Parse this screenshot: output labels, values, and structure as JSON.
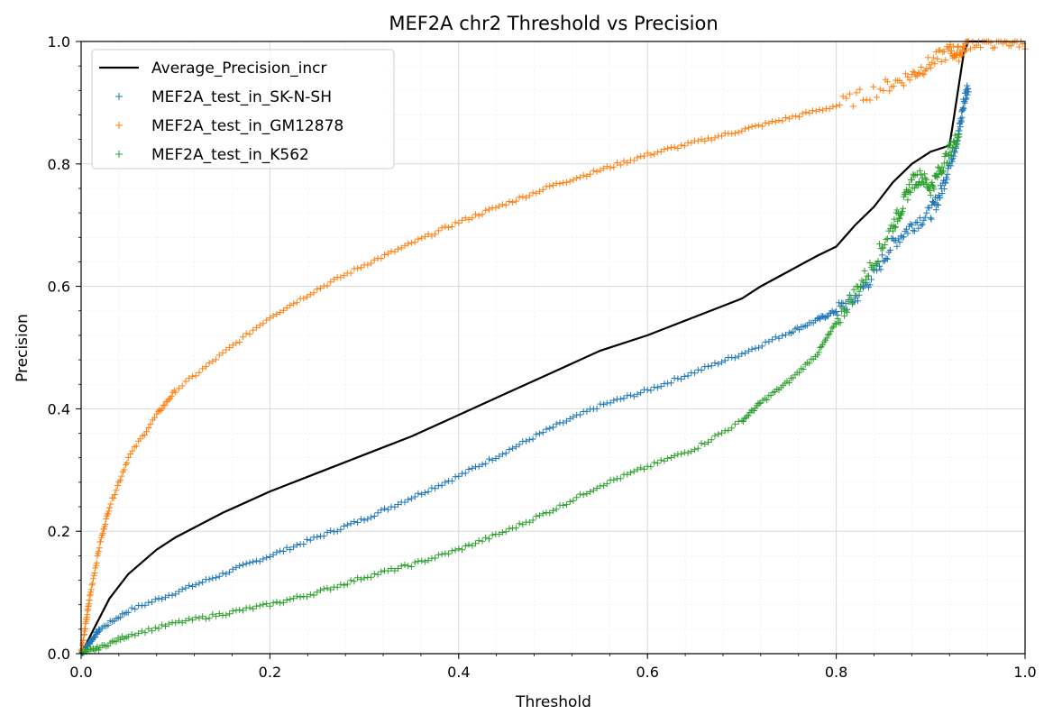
{
  "chart_data": {
    "type": "line",
    "title": "MEF2A chr2 Threshold vs Precision",
    "xlabel": "Threshold",
    "ylabel": "Precision",
    "xlim": [
      0.0,
      1.0
    ],
    "ylim": [
      0.0,
      1.0
    ],
    "xticks": [
      "0.0",
      "0.2",
      "0.4",
      "0.6",
      "0.8",
      "1.0"
    ],
    "yticks": [
      "0.0",
      "0.2",
      "0.4",
      "0.6",
      "0.8",
      "1.0"
    ],
    "grid": true,
    "minor_grid": true,
    "legend_position": "top-left",
    "series": [
      {
        "name": "Average_Precision_incr",
        "style": "line",
        "color": "#000000",
        "points": [
          [
            0,
            0
          ],
          [
            0.01,
            0.03
          ],
          [
            0.02,
            0.06
          ],
          [
            0.03,
            0.09
          ],
          [
            0.05,
            0.13
          ],
          [
            0.08,
            0.17
          ],
          [
            0.1,
            0.19
          ],
          [
            0.15,
            0.23
          ],
          [
            0.2,
            0.265
          ],
          [
            0.25,
            0.295
          ],
          [
            0.3,
            0.325
          ],
          [
            0.35,
            0.355
          ],
          [
            0.4,
            0.39
          ],
          [
            0.45,
            0.425
          ],
          [
            0.5,
            0.46
          ],
          [
            0.55,
            0.495
          ],
          [
            0.6,
            0.52
          ],
          [
            0.65,
            0.55
          ],
          [
            0.7,
            0.58
          ],
          [
            0.72,
            0.6
          ],
          [
            0.75,
            0.625
          ],
          [
            0.78,
            0.65
          ],
          [
            0.8,
            0.665
          ],
          [
            0.82,
            0.7
          ],
          [
            0.84,
            0.73
          ],
          [
            0.86,
            0.77
          ],
          [
            0.88,
            0.8
          ],
          [
            0.9,
            0.82
          ],
          [
            0.92,
            0.83
          ],
          [
            0.925,
            0.88
          ],
          [
            0.93,
            0.93
          ],
          [
            0.935,
            0.98
          ],
          [
            0.94,
            1.0
          ],
          [
            0.96,
            1.0
          ]
        ]
      },
      {
        "name": "MEF2A_test_in_SK-N-SH",
        "style": "markers",
        "color": "#1f77b4",
        "points": [
          [
            0,
            0
          ],
          [
            0.01,
            0.02
          ],
          [
            0.02,
            0.04
          ],
          [
            0.05,
            0.07
          ],
          [
            0.1,
            0.1
          ],
          [
            0.15,
            0.13
          ],
          [
            0.2,
            0.16
          ],
          [
            0.25,
            0.19
          ],
          [
            0.3,
            0.22
          ],
          [
            0.35,
            0.255
          ],
          [
            0.4,
            0.29
          ],
          [
            0.45,
            0.33
          ],
          [
            0.5,
            0.37
          ],
          [
            0.55,
            0.405
          ],
          [
            0.6,
            0.43
          ],
          [
            0.65,
            0.46
          ],
          [
            0.7,
            0.49
          ],
          [
            0.75,
            0.525
          ],
          [
            0.78,
            0.545
          ],
          [
            0.8,
            0.56
          ],
          [
            0.82,
            0.58
          ],
          [
            0.84,
            0.62
          ],
          [
            0.86,
            0.67
          ],
          [
            0.88,
            0.7
          ],
          [
            0.9,
            0.72
          ],
          [
            0.91,
            0.75
          ],
          [
            0.92,
            0.8
          ],
          [
            0.93,
            0.85
          ],
          [
            0.935,
            0.9
          ],
          [
            0.94,
            0.93
          ]
        ]
      },
      {
        "name": "MEF2A_test_in_GM12878",
        "style": "markers",
        "color": "#ff7f0e",
        "points": [
          [
            0,
            0
          ],
          [
            0.005,
            0.05
          ],
          [
            0.01,
            0.1
          ],
          [
            0.02,
            0.18
          ],
          [
            0.03,
            0.24
          ],
          [
            0.05,
            0.32
          ],
          [
            0.08,
            0.39
          ],
          [
            0.1,
            0.43
          ],
          [
            0.15,
            0.49
          ],
          [
            0.2,
            0.55
          ],
          [
            0.25,
            0.595
          ],
          [
            0.3,
            0.635
          ],
          [
            0.35,
            0.67
          ],
          [
            0.4,
            0.705
          ],
          [
            0.45,
            0.735
          ],
          [
            0.5,
            0.765
          ],
          [
            0.55,
            0.79
          ],
          [
            0.6,
            0.815
          ],
          [
            0.65,
            0.835
          ],
          [
            0.7,
            0.855
          ],
          [
            0.75,
            0.875
          ],
          [
            0.8,
            0.895
          ],
          [
            0.85,
            0.925
          ],
          [
            0.88,
            0.945
          ],
          [
            0.9,
            0.965
          ],
          [
            0.92,
            0.985
          ],
          [
            0.93,
            0.98
          ],
          [
            0.94,
            1.0
          ],
          [
            0.97,
            1.0
          ],
          [
            1.0,
            1.0
          ]
        ]
      },
      {
        "name": "MEF2A_test_in_K562",
        "style": "markers",
        "color": "#2ca02c",
        "points": [
          [
            0,
            0
          ],
          [
            0.02,
            0.01
          ],
          [
            0.05,
            0.03
          ],
          [
            0.1,
            0.05
          ],
          [
            0.15,
            0.065
          ],
          [
            0.2,
            0.08
          ],
          [
            0.25,
            0.1
          ],
          [
            0.3,
            0.125
          ],
          [
            0.35,
            0.145
          ],
          [
            0.4,
            0.17
          ],
          [
            0.45,
            0.2
          ],
          [
            0.5,
            0.235
          ],
          [
            0.55,
            0.275
          ],
          [
            0.6,
            0.305
          ],
          [
            0.65,
            0.335
          ],
          [
            0.7,
            0.38
          ],
          [
            0.72,
            0.41
          ],
          [
            0.75,
            0.445
          ],
          [
            0.78,
            0.49
          ],
          [
            0.8,
            0.54
          ],
          [
            0.82,
            0.59
          ],
          [
            0.84,
            0.64
          ],
          [
            0.86,
            0.7
          ],
          [
            0.87,
            0.73
          ],
          [
            0.88,
            0.77
          ],
          [
            0.89,
            0.78
          ],
          [
            0.9,
            0.76
          ],
          [
            0.91,
            0.79
          ],
          [
            0.92,
            0.82
          ],
          [
            0.93,
            0.85
          ]
        ]
      }
    ]
  }
}
